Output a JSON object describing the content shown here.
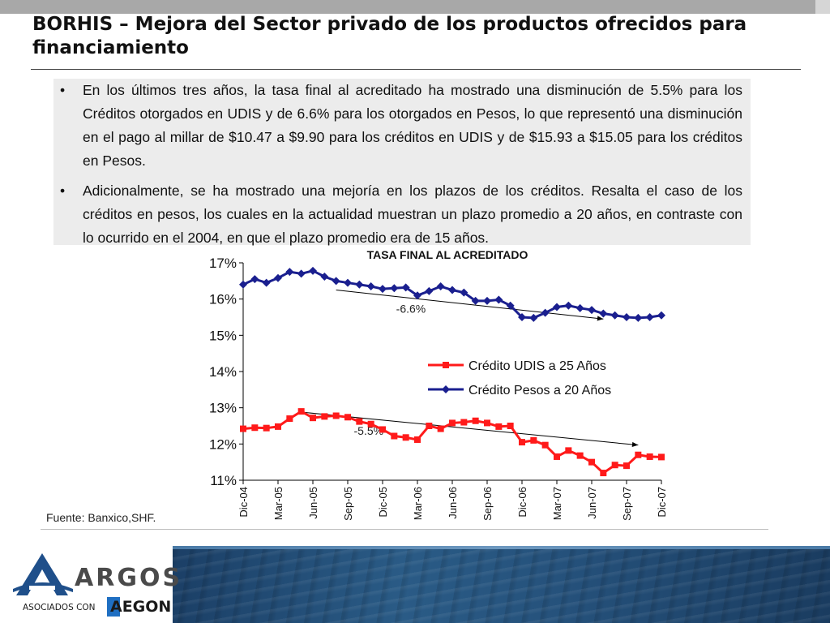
{
  "slide": {
    "title": "BORHIS – Mejora del Sector privado de los productos ofrecidos para financiamiento",
    "bullets": [
      "En los últimos tres años, la tasa final al acreditado ha mostrado una disminución de 5.5% para los Créditos otorgados en UDIS y  de 6.6% para los otorgados en Pesos, lo que representó una disminución en el pago al millar de $10.47 a $9.90 para los créditos en UDIS y de $15.93 a $15.05 para los créditos en Pesos.",
      "Adicionalmente, se ha mostrado una mejoría en los plazos de los créditos. Resalta el caso de los créditos en pesos, los cuales en la actualidad muestran un plazo promedio a 20 años, en contraste con lo ocurrido en el 2004, en que el plazo promedio era de 15 años."
    ],
    "bullet_symbol": "•",
    "source": "Fuente: Banxico,SHF."
  },
  "footer": {
    "brand": "ARGOS",
    "tagline": "ASOCIADOS CON",
    "partner": "AEGON"
  },
  "colors": {
    "udis": "#ff1a1a",
    "pesos": "#1a1f8f",
    "text_box": "#ececec"
  },
  "chart_data": {
    "type": "line",
    "title": "TASA FINAL AL ACREDITADO",
    "xlabel": "",
    "ylabel": "",
    "ylim": [
      11,
      17
    ],
    "yticks": [
      "11%",
      "12%",
      "13%",
      "14%",
      "15%",
      "16%",
      "17%"
    ],
    "yticks_values": [
      11,
      12,
      13,
      14,
      15,
      16,
      17
    ],
    "n_points": 37,
    "xticks": [
      "Dic-04",
      "Mar-05",
      "Jun-05",
      "Sep-05",
      "Dic-05",
      "Mar-06",
      "Jun-06",
      "Sep-06",
      "Dic-06",
      "Mar-07",
      "Jun-07",
      "Sep-07",
      "Dic-07"
    ],
    "xticks_index": [
      0,
      3,
      6,
      9,
      12,
      15,
      18,
      21,
      24,
      27,
      30,
      33,
      36
    ],
    "series": [
      {
        "name": "Crédito UDIS a 25 Años",
        "key": "udis",
        "values": [
          12.42,
          12.45,
          12.44,
          12.48,
          12.7,
          12.9,
          12.72,
          12.76,
          12.78,
          12.74,
          12.62,
          12.55,
          12.4,
          12.22,
          12.18,
          12.12,
          12.5,
          12.42,
          12.58,
          12.6,
          12.64,
          12.58,
          12.48,
          12.5,
          12.05,
          12.1,
          11.97,
          11.65,
          11.82,
          11.68,
          11.5,
          11.2,
          11.42,
          11.4,
          11.7,
          11.65,
          11.64
        ]
      },
      {
        "name": "Crédito Pesos a 20 Años",
        "key": "pesos",
        "values": [
          16.4,
          16.55,
          16.45,
          16.58,
          16.75,
          16.7,
          16.78,
          16.62,
          16.5,
          16.45,
          16.4,
          16.35,
          16.28,
          16.3,
          16.32,
          16.1,
          16.22,
          16.35,
          16.25,
          16.18,
          15.95,
          15.95,
          15.98,
          15.82,
          15.5,
          15.48,
          15.62,
          15.78,
          15.82,
          15.75,
          15.7,
          15.6,
          15.55,
          15.5,
          15.48,
          15.5,
          15.55
        ]
      }
    ],
    "trend_annotations": [
      {
        "label": "-6.6%",
        "series": "pesos",
        "from": [
          8,
          16.25
        ],
        "to": [
          31,
          15.45
        ]
      },
      {
        "label": "-5.5%",
        "series": "udis",
        "from": [
          5,
          12.88
        ],
        "to": [
          34,
          11.97
        ]
      }
    ],
    "legend": {
      "placement": "center-right"
    },
    "grid": false
  }
}
